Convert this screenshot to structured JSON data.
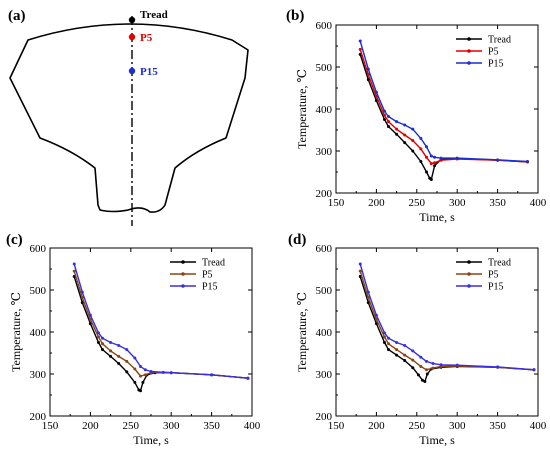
{
  "colors": {
    "tread": "#000000",
    "p5": "#e00000",
    "p15": "#1a2fd1",
    "p5_alt": "#8b4513",
    "p15_alt": "#3a2fe0"
  },
  "diagram": {
    "letter": "(a)",
    "labels": {
      "tread": "Tread",
      "p5": "P5",
      "p15": "P15"
    }
  },
  "chart_data": [
    {
      "panel": "(b)",
      "type": "line",
      "xlabel": "Time, s",
      "ylabel": "Temperature, ℃",
      "xlim": [
        150,
        400
      ],
      "ylim": [
        200,
        600
      ],
      "xticks": [
        "150",
        "200",
        "250",
        "300",
        "350",
        "400"
      ],
      "yticks": [
        "200",
        "300",
        "400",
        "500",
        "600"
      ],
      "legend_position": "top-right",
      "series": [
        {
          "name": "Tread",
          "color_key": "tread",
          "x": [
            180,
            190,
            200,
            210,
            215,
            225,
            235,
            245,
            255,
            262,
            266,
            268,
            272,
            280,
            300,
            350,
            387
          ],
          "y": [
            530,
            470,
            420,
            375,
            358,
            340,
            320,
            300,
            275,
            250,
            235,
            232,
            265,
            280,
            282,
            278,
            274
          ]
        },
        {
          "name": "P5",
          "color_key": "p5",
          "x": [
            180,
            190,
            200,
            210,
            215,
            225,
            235,
            245,
            255,
            262,
            268,
            272,
            280,
            300,
            350,
            387
          ],
          "y": [
            542,
            482,
            430,
            385,
            370,
            352,
            338,
            325,
            305,
            285,
            270,
            272,
            278,
            281,
            278,
            274
          ]
        },
        {
          "name": "P15",
          "color_key": "p15",
          "x": [
            180,
            190,
            200,
            210,
            215,
            225,
            235,
            245,
            255,
            262,
            268,
            272,
            280,
            300,
            350,
            387
          ],
          "y": [
            562,
            495,
            440,
            395,
            382,
            370,
            362,
            352,
            330,
            310,
            288,
            285,
            283,
            283,
            279,
            275
          ]
        }
      ]
    },
    {
      "panel": "(c)",
      "type": "line",
      "xlabel": "Time, s",
      "ylabel": "Temperature, ℃",
      "xlim": [
        150,
        400
      ],
      "ylim": [
        200,
        600
      ],
      "xticks": [
        "150",
        "200",
        "250",
        "300",
        "350",
        "400"
      ],
      "yticks": [
        "200",
        "300",
        "400",
        "500",
        "600"
      ],
      "legend_position": "top-right",
      "series": [
        {
          "name": "Tread",
          "color_key": "tread",
          "x": [
            180,
            190,
            200,
            210,
            215,
            225,
            235,
            245,
            255,
            260,
            262,
            265,
            270,
            280,
            300,
            350,
            395
          ],
          "y": [
            532,
            470,
            420,
            375,
            358,
            342,
            325,
            305,
            280,
            262,
            260,
            280,
            298,
            303,
            303,
            298,
            290
          ]
        },
        {
          "name": "P5",
          "color_key": "p5_alt",
          "x": [
            180,
            190,
            200,
            210,
            215,
            225,
            235,
            245,
            255,
            262,
            268,
            275,
            290,
            300,
            350,
            395
          ],
          "y": [
            545,
            482,
            430,
            388,
            372,
            355,
            342,
            330,
            312,
            295,
            298,
            303,
            304,
            303,
            298,
            290
          ]
        },
        {
          "name": "P15",
          "color_key": "p15_alt",
          "x": [
            180,
            190,
            200,
            210,
            215,
            225,
            235,
            245,
            255,
            262,
            268,
            275,
            290,
            300,
            350,
            395
          ],
          "y": [
            562,
            495,
            440,
            398,
            385,
            375,
            368,
            358,
            338,
            318,
            310,
            306,
            304,
            303,
            298,
            290
          ]
        }
      ]
    },
    {
      "panel": "(d)",
      "type": "line",
      "xlabel": "Time, s",
      "ylabel": "Temperature, ℃",
      "xlim": [
        150,
        400
      ],
      "ylim": [
        200,
        600
      ],
      "xticks": [
        "150",
        "200",
        "250",
        "300",
        "350",
        "400"
      ],
      "yticks": [
        "200",
        "300",
        "400",
        "500",
        "600"
      ],
      "legend_position": "top-right",
      "series": [
        {
          "name": "Tread",
          "color_key": "tread",
          "x": [
            180,
            190,
            200,
            210,
            215,
            225,
            235,
            245,
            252,
            257,
            260,
            263,
            268,
            280,
            300,
            350,
            395
          ],
          "y": [
            532,
            470,
            420,
            375,
            358,
            345,
            332,
            315,
            298,
            285,
            282,
            300,
            312,
            316,
            318,
            316,
            310
          ]
        },
        {
          "name": "P5",
          "color_key": "p5_alt",
          "x": [
            180,
            190,
            200,
            210,
            215,
            225,
            235,
            245,
            255,
            262,
            270,
            280,
            300,
            350,
            395
          ],
          "y": [
            545,
            482,
            430,
            388,
            372,
            358,
            345,
            333,
            318,
            310,
            314,
            318,
            319,
            316,
            310
          ]
        },
        {
          "name": "P15",
          "color_key": "p15_alt",
          "x": [
            180,
            190,
            200,
            210,
            215,
            225,
            235,
            245,
            255,
            262,
            270,
            280,
            300,
            350,
            395
          ],
          "y": [
            562,
            495,
            440,
            398,
            385,
            375,
            368,
            355,
            340,
            330,
            325,
            322,
            321,
            317,
            310
          ]
        }
      ]
    }
  ]
}
